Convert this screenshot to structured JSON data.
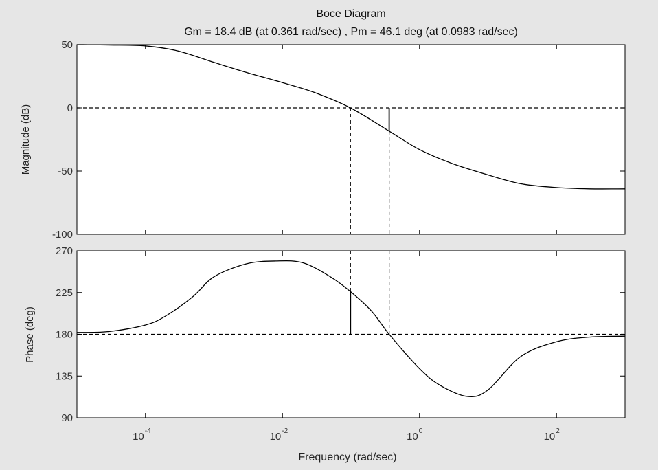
{
  "chart_data": {
    "type": "line",
    "title": "Boce Diagram",
    "subtitle": "Gm = 18.4 dB (at 0.361 rad/sec) ,  Pm = 46.1 deg (at 0.0983 rad/sec)",
    "xlabel": "Frequency  (rad/sec)",
    "xscale": "log",
    "xlim": [
      1e-05,
      1000
    ],
    "x_ticks": [
      {
        "base": "10",
        "exp": "-4",
        "value": 0.0001
      },
      {
        "base": "10",
        "exp": "-2",
        "value": 0.01
      },
      {
        "base": "10",
        "exp": "0",
        "value": 1
      },
      {
        "base": "10",
        "exp": "2",
        "value": 100
      }
    ],
    "grid": false,
    "colors": {
      "background": "#e6e6e6",
      "plot_bg": "#ffffff",
      "line": "#000000"
    },
    "panels": [
      {
        "name": "magnitude",
        "ylabel": "Magnitude (dB)",
        "ylim": [
          -100,
          50
        ],
        "y_ticks": [
          "50",
          "0",
          "-50",
          "-100"
        ],
        "y_tick_values": [
          50,
          0,
          -50,
          -100
        ],
        "reference_line": 0,
        "series": [
          {
            "x": [
              1e-05,
              3e-05,
              0.0001,
              0.0003,
              0.001,
              0.003,
              0.01,
              0.03,
              0.0983,
              0.361,
              1,
              3,
              10,
              30,
              100,
              300,
              1000
            ],
            "y": [
              50,
              49.7,
              49,
              45,
              36,
              28,
              20,
              12,
              0,
              -18.4,
              -33,
              -44,
              -53,
              -60,
              -63,
              -64,
              -64
            ]
          }
        ]
      },
      {
        "name": "phase",
        "ylabel": "Phase (deg)",
        "ylim": [
          90,
          270
        ],
        "y_ticks": [
          "270",
          "225",
          "180",
          "135",
          "90"
        ],
        "y_tick_values": [
          270,
          225,
          180,
          135,
          90
        ],
        "reference_line": 180,
        "series": [
          {
            "x": [
              1e-05,
              3e-05,
              0.0001,
              0.0002,
              0.0005,
              0.001,
              0.003,
              0.008,
              0.02,
              0.05,
              0.0983,
              0.2,
              0.361,
              1,
              2,
              5,
              10,
              30,
              100,
              300,
              1000
            ],
            "y": [
              182,
              183,
              190,
              200,
              221,
              242,
              256,
              259,
              257,
              242,
              226,
              205,
              180,
              143,
              125,
              113,
              120,
              156,
              172,
              177,
              178
            ]
          }
        ]
      }
    ],
    "markers": [
      {
        "label": "Pm",
        "x": 0.0983,
        "phase_value": 226.1
      },
      {
        "label": "Gm",
        "x": 0.361,
        "magnitude_value": -18.4
      }
    ]
  }
}
